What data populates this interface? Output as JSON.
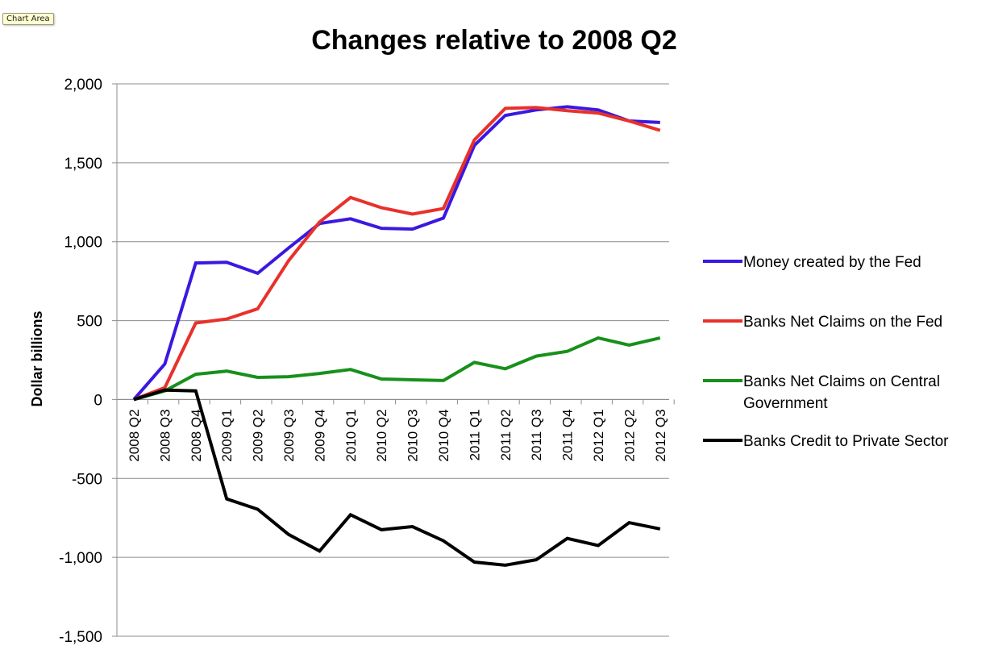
{
  "ui": {
    "tooltip": "Chart Area"
  },
  "chart_data": {
    "type": "line",
    "title": "Changes relative to 2008 Q2",
    "ylabel": "Dollar billions",
    "xlabel": "",
    "ylim": [
      -1500,
      2000
    ],
    "ytick_step": 500,
    "ytick_labels": [
      "-1,500",
      "-1,000",
      "-500",
      "0",
      "500",
      "1,000",
      "1,500",
      "2,000"
    ],
    "grid": "horizontal",
    "legend_position": "right",
    "categories": [
      "2008 Q2",
      "2008 Q3",
      "2008 Q4",
      "2009 Q1",
      "2009 Q2",
      "2009 Q3",
      "2009 Q4",
      "2010 Q1",
      "2010 Q2",
      "2010 Q3",
      "2010 Q4",
      "2011 Q1",
      "2011 Q2",
      "2011 Q3",
      "2011 Q4",
      "2012 Q1",
      "2012 Q2",
      "2012 Q3"
    ],
    "series": [
      {
        "name": "Money created by the Fed",
        "color": "#3b18e0",
        "values": [
          0,
          225,
          865,
          870,
          800,
          960,
          1115,
          1145,
          1085,
          1080,
          1150,
          1610,
          1800,
          1835,
          1855,
          1835,
          1765,
          1755
        ]
      },
      {
        "name": "Banks Net Claims on the Fed",
        "color": "#e8312a",
        "values": [
          0,
          75,
          485,
          510,
          575,
          880,
          1125,
          1280,
          1215,
          1175,
          1210,
          1645,
          1845,
          1850,
          1830,
          1815,
          1765,
          1705
        ]
      },
      {
        "name": "Banks Net Claims on Central Government",
        "legend_lines": [
          "Banks Net Claims on Central",
          "Government"
        ],
        "color": "#18901c",
        "values": [
          0,
          55,
          160,
          180,
          140,
          145,
          165,
          190,
          130,
          125,
          120,
          235,
          195,
          275,
          305,
          390,
          345,
          390
        ]
      },
      {
        "name": "Banks Credit to Private Sector",
        "color": "#000000",
        "values": [
          0,
          60,
          55,
          -630,
          -695,
          -855,
          -960,
          -730,
          -825,
          -805,
          -895,
          -1030,
          -1050,
          -1015,
          -880,
          -925,
          -780,
          -820
        ]
      }
    ]
  }
}
